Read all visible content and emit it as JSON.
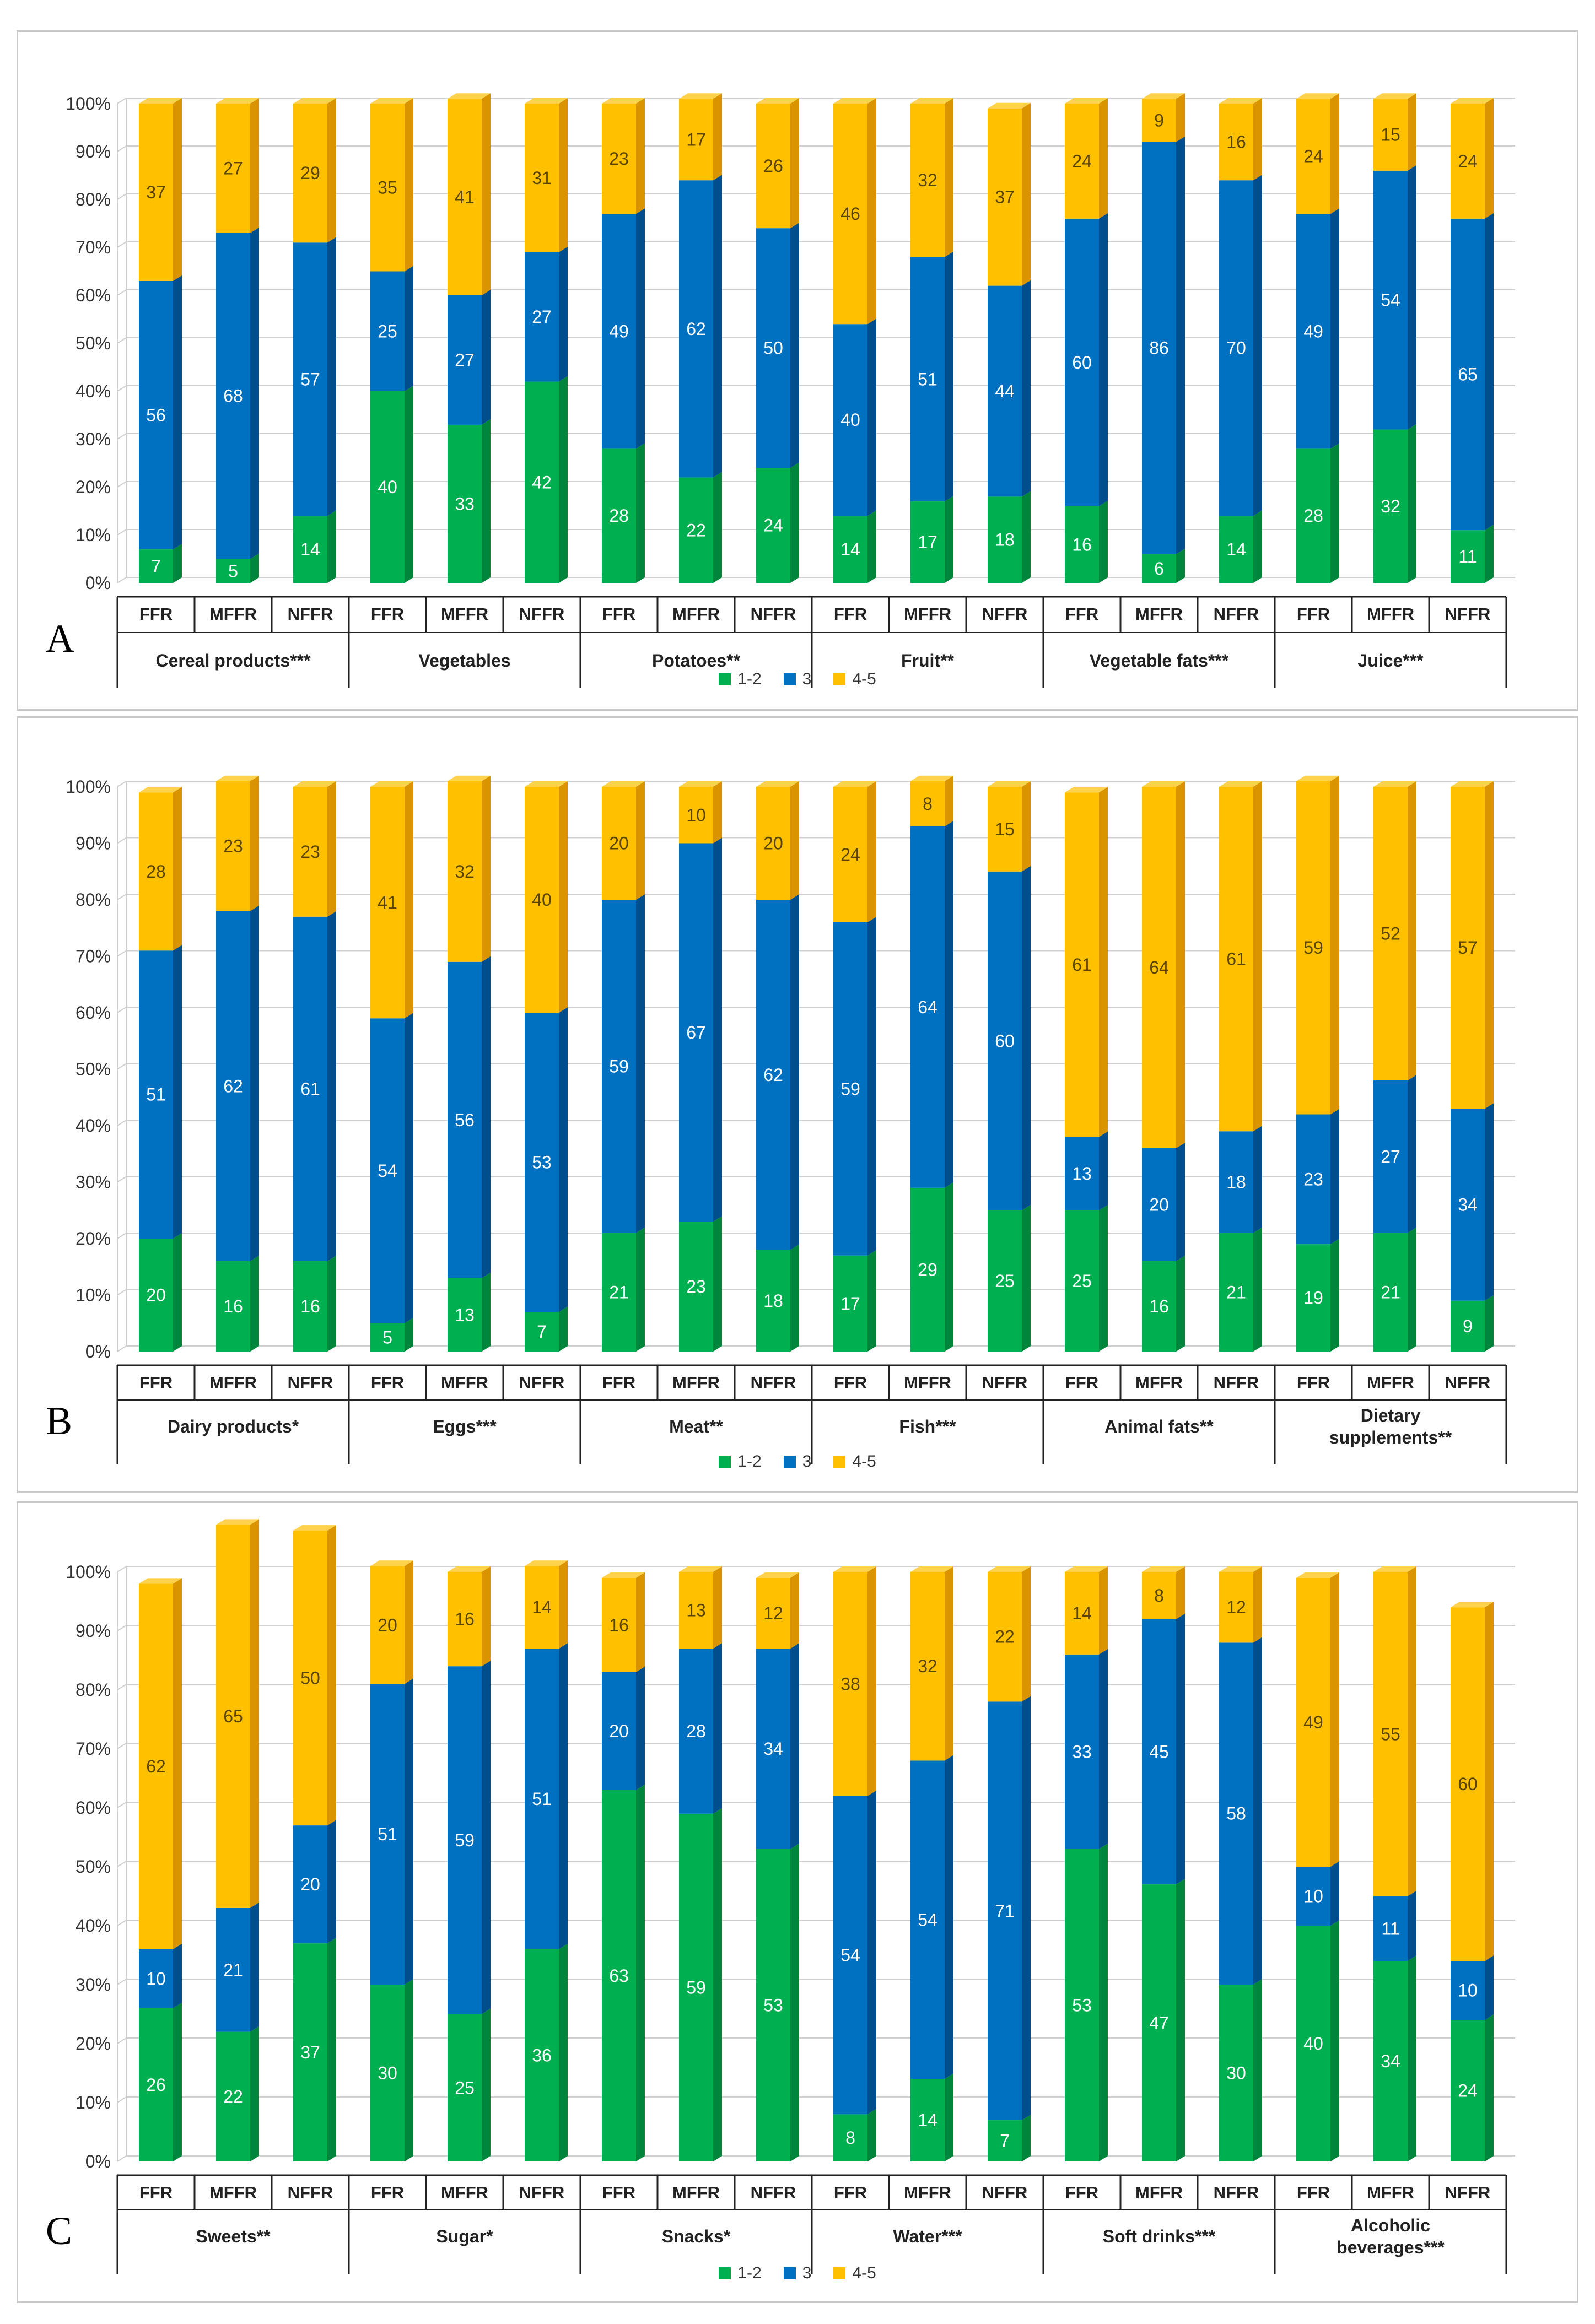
{
  "legend": [
    "1-2",
    "3",
    "4-5"
  ],
  "colors": {
    "1-2": {
      "front": "#00b050",
      "side": "#00853c",
      "top": "#33c070"
    },
    "3": {
      "front": "#0070c0",
      "side": "#004f8c",
      "top": "#3392d6"
    },
    "4-5": {
      "front": "#ffc000",
      "side": "#d99400",
      "top": "#ffd24d"
    }
  },
  "chart_data": [
    {
      "type": "bar",
      "stacked": true,
      "panel_label": "A",
      "yticks": [
        "0%",
        "10%",
        "20%",
        "30%",
        "40%",
        "50%",
        "60%",
        "70%",
        "80%",
        "90%",
        "100%"
      ],
      "ylim": [
        0,
        100
      ],
      "groups": [
        "Cereal products***",
        "Vegetables",
        "Potatoes**",
        "Fruit**",
        "Vegetable fats***",
        "Juice***"
      ],
      "subcategories": [
        "FFR",
        "MFFR",
        "NFFR"
      ],
      "series": [
        {
          "name": "1-2",
          "values": [
            [
              7,
              5,
              14
            ],
            [
              40,
              33,
              42
            ],
            [
              28,
              22,
              24
            ],
            [
              14,
              17,
              18
            ],
            [
              16,
              6,
              14
            ],
            [
              28,
              32,
              11
            ]
          ]
        },
        {
          "name": "3",
          "values": [
            [
              56,
              68,
              57
            ],
            [
              25,
              27,
              27
            ],
            [
              49,
              62,
              50
            ],
            [
              40,
              51,
              44
            ],
            [
              60,
              86,
              70
            ],
            [
              49,
              54,
              65
            ]
          ]
        },
        {
          "name": "4-5",
          "values": [
            [
              37,
              27,
              29
            ],
            [
              35,
              41,
              31
            ],
            [
              23,
              17,
              26
            ],
            [
              46,
              32,
              37
            ],
            [
              24,
              9,
              16
            ],
            [
              24,
              15,
              24
            ]
          ]
        }
      ]
    },
    {
      "type": "bar",
      "stacked": true,
      "panel_label": "B",
      "yticks": [
        "0%",
        "10%",
        "20%",
        "30%",
        "40%",
        "50%",
        "60%",
        "70%",
        "80%",
        "90%",
        "100%"
      ],
      "ylim": [
        0,
        100
      ],
      "groups": [
        "Dairy products*",
        "Eggs***",
        "Meat**",
        "Fish***",
        "Animal fats**",
        "Dietary supplements**"
      ],
      "subcategories": [
        "FFR",
        "MFFR",
        "NFFR"
      ],
      "series": [
        {
          "name": "1-2",
          "values": [
            [
              20,
              16,
              16
            ],
            [
              5,
              13,
              7
            ],
            [
              21,
              23,
              18
            ],
            [
              17,
              29,
              25
            ],
            [
              25,
              16,
              21
            ],
            [
              19,
              21,
              9
            ]
          ]
        },
        {
          "name": "3",
          "values": [
            [
              51,
              62,
              61
            ],
            [
              54,
              56,
              53
            ],
            [
              59,
              67,
              62
            ],
            [
              59,
              64,
              60
            ],
            [
              13,
              20,
              18
            ],
            [
              23,
              27,
              34
            ]
          ]
        },
        {
          "name": "4-5",
          "values": [
            [
              28,
              23,
              23
            ],
            [
              41,
              32,
              40
            ],
            [
              20,
              10,
              20
            ],
            [
              24,
              8,
              15
            ],
            [
              61,
              64,
              61
            ],
            [
              59,
              52,
              57
            ]
          ]
        }
      ]
    },
    {
      "type": "bar",
      "stacked": true,
      "panel_label": "C",
      "yticks": [
        "0%",
        "10%",
        "20%",
        "30%",
        "40%",
        "50%",
        "60%",
        "70%",
        "80%",
        "90%",
        "100%"
      ],
      "ylim": [
        0,
        100
      ],
      "groups": [
        "Sweets**",
        "Sugar*",
        "Snacks*",
        "Water***",
        "Soft drinks***",
        "Alcoholic beverages***"
      ],
      "subcategories": [
        "FFR",
        "MFFR",
        "NFFR"
      ],
      "series": [
        {
          "name": "1-2",
          "values": [
            [
              26,
              22,
              37
            ],
            [
              30,
              25,
              36
            ],
            [
              63,
              59,
              53
            ],
            [
              8,
              14,
              7
            ],
            [
              53,
              47,
              30
            ],
            [
              40,
              34,
              24
            ]
          ]
        },
        {
          "name": "3",
          "values": [
            [
              10,
              21,
              20
            ],
            [
              51,
              59,
              51
            ],
            [
              20,
              28,
              34
            ],
            [
              54,
              54,
              71
            ],
            [
              33,
              45,
              58
            ],
            [
              10,
              11,
              10
            ]
          ]
        },
        {
          "name": "4-5",
          "values": [
            [
              62,
              65,
              50
            ],
            [
              20,
              16,
              14
            ],
            [
              16,
              13,
              12
            ],
            [
              38,
              32,
              22
            ],
            [
              14,
              8,
              12
            ],
            [
              49,
              55,
              60
            ]
          ]
        }
      ]
    }
  ]
}
